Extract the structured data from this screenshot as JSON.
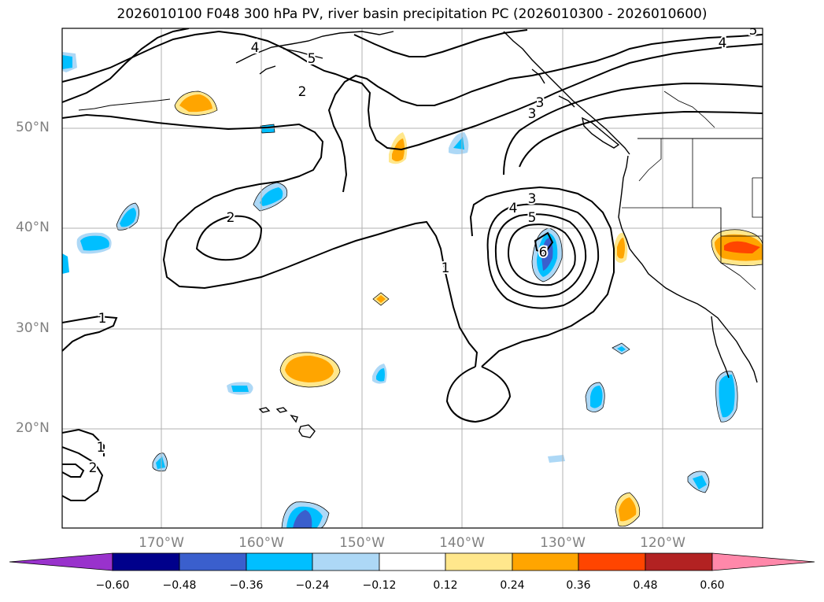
{
  "title": "2026010100 F048 300 hPa PV, river basin precipitation PC (2026010300 - 2026010600)",
  "latitude_labels": [
    "50°N",
    "40°N",
    "30°N",
    "20°N"
  ],
  "longitude_labels": [
    "170°W",
    "160°W",
    "150°W",
    "140°W",
    "130°W",
    "120°W"
  ],
  "contour_labels": [
    "1",
    "1",
    "1",
    "2",
    "2",
    "2",
    "3",
    "3",
    "3",
    "4",
    "4",
    "4",
    "5",
    "5",
    "5",
    "6"
  ],
  "colorbar": {
    "ticks": [
      "−0.60",
      "−0.48",
      "−0.36",
      "−0.24",
      "−0.12",
      "0.12",
      "0.24",
      "0.36",
      "0.48",
      "0.60"
    ],
    "colors": [
      "#9932cc",
      "#00008b",
      "#3a5fcd",
      "#00bfff",
      "#add8f6",
      "#ffffff",
      "#ffe78c",
      "#ffa500",
      "#ff4500",
      "#b22222",
      "#ff88aa"
    ]
  },
  "colors": {
    "neg_light": "#add8f6",
    "neg_mid": "#00bfff",
    "neg_strong": "#3a5fcd",
    "pos_light": "#ffe78c",
    "pos_mid": "#ffa500",
    "pos_strong": "#ff4500"
  }
}
